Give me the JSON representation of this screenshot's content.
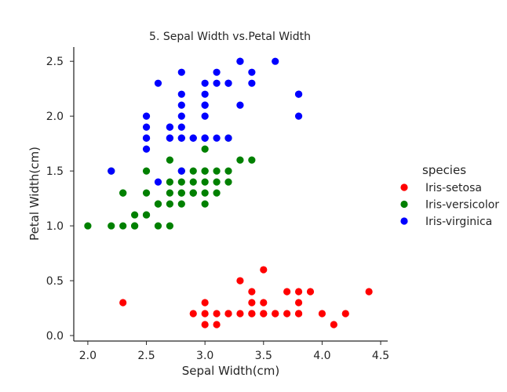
{
  "chart_data": {
    "type": "scatter",
    "title": "5. Sepal Width vs.Petal Width",
    "xlabel": "Sepal Width(cm)",
    "ylabel": "Petal Width(cm)",
    "xlim": [
      1.88,
      4.56
    ],
    "ylim": [
      -0.05,
      2.63
    ],
    "xticks": [
      "2.0",
      "2.5",
      "3.0",
      "3.5",
      "4.0",
      "4.5"
    ],
    "xtick_values": [
      2.0,
      2.5,
      3.0,
      3.5,
      4.0,
      4.5
    ],
    "yticks": [
      "0.0",
      "0.5",
      "1.0",
      "1.5",
      "2.0",
      "2.5"
    ],
    "ytick_values": [
      0.0,
      0.5,
      1.0,
      1.5,
      2.0,
      2.5
    ],
    "grid": false,
    "legend": {
      "title": "species",
      "placement": "right"
    },
    "series": [
      {
        "name": "Iris-setosa",
        "color": "#ff0000",
        "x": [
          2.3,
          2.9,
          3.0,
          3.0,
          3.0,
          3.1,
          3.1,
          3.2,
          3.2,
          3.3,
          3.3,
          3.4,
          3.4,
          3.4,
          3.4,
          3.5,
          3.5,
          3.5,
          3.5,
          3.6,
          3.6,
          3.7,
          3.7,
          3.8,
          3.8,
          3.8,
          3.8,
          3.9,
          4.0,
          4.1,
          4.2,
          4.4
        ],
        "y": [
          0.3,
          0.2,
          0.3,
          0.2,
          0.1,
          0.2,
          0.1,
          0.2,
          0.2,
          0.5,
          0.2,
          0.4,
          0.3,
          0.2,
          0.2,
          0.6,
          0.3,
          0.2,
          0.2,
          0.2,
          0.2,
          0.4,
          0.2,
          0.4,
          0.3,
          0.2,
          0.2,
          0.4,
          0.2,
          0.1,
          0.2,
          0.4
        ]
      },
      {
        "name": "Iris-versicolor",
        "color": "#008000",
        "x": [
          2.0,
          2.2,
          2.2,
          2.3,
          2.3,
          2.3,
          2.4,
          2.4,
          2.4,
          2.5,
          2.5,
          2.5,
          2.5,
          2.6,
          2.6,
          2.6,
          2.7,
          2.7,
          2.7,
          2.7,
          2.7,
          2.8,
          2.8,
          2.8,
          2.8,
          2.8,
          2.9,
          2.9,
          2.9,
          2.9,
          2.9,
          3.0,
          3.0,
          3.0,
          3.0,
          3.0,
          3.0,
          3.1,
          3.1,
          3.1,
          3.2,
          3.2,
          3.2,
          3.3,
          3.4
        ],
        "y": [
          1.0,
          1.0,
          1.5,
          1.3,
          1.0,
          1.3,
          1.0,
          1.1,
          1.0,
          1.1,
          1.5,
          1.3,
          1.1,
          1.0,
          1.2,
          1.2,
          1.6,
          1.4,
          1.2,
          1.0,
          1.3,
          1.3,
          1.5,
          1.2,
          1.3,
          1.4,
          1.3,
          1.4,
          1.5,
          1.3,
          1.3,
          1.4,
          1.5,
          1.7,
          1.5,
          1.2,
          1.3,
          1.5,
          1.4,
          1.3,
          1.5,
          1.8,
          1.4,
          1.6,
          1.6
        ]
      },
      {
        "name": "Iris-virginica",
        "color": "#0000ff",
        "x": [
          2.2,
          2.5,
          2.5,
          2.5,
          2.5,
          2.5,
          2.6,
          2.6,
          2.7,
          2.7,
          2.7,
          2.7,
          2.8,
          2.8,
          2.8,
          2.8,
          2.8,
          2.8,
          2.8,
          2.8,
          2.9,
          2.9,
          3.0,
          3.0,
          3.0,
          3.0,
          3.0,
          3.0,
          3.0,
          3.0,
          3.1,
          3.1,
          3.1,
          3.2,
          3.2,
          3.2,
          3.3,
          3.3,
          3.3,
          3.4,
          3.4,
          3.6,
          3.8,
          3.8,
          3.8
        ],
        "y": [
          1.5,
          1.7,
          1.8,
          1.9,
          2.0,
          1.8,
          1.4,
          2.3,
          1.9,
          1.8,
          1.9,
          1.8,
          1.5,
          1.8,
          1.9,
          2.0,
          2.1,
          2.2,
          2.4,
          1.8,
          1.8,
          1.8,
          1.8,
          2.3,
          2.1,
          2.0,
          2.1,
          1.8,
          2.2,
          1.8,
          2.4,
          2.3,
          1.8,
          2.3,
          1.8,
          2.3,
          2.1,
          2.5,
          2.5,
          2.4,
          2.3,
          2.5,
          2.0,
          2.2,
          2.2
        ]
      }
    ]
  }
}
